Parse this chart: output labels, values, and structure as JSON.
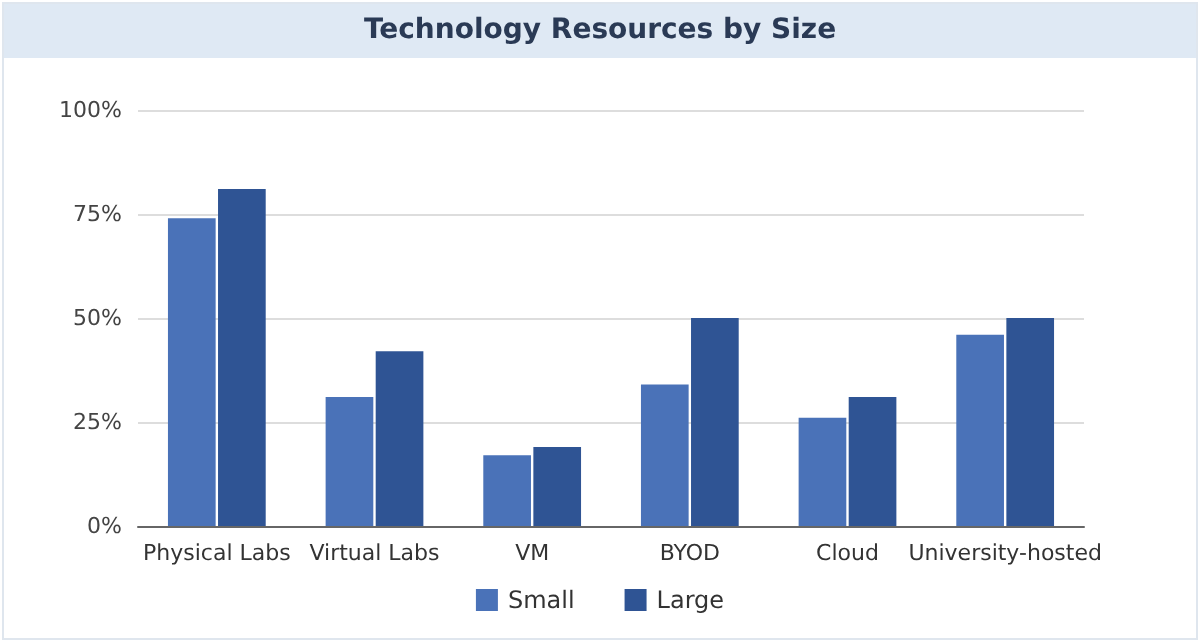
{
  "chart_data": {
    "type": "bar",
    "title": "Technology Resources by Size",
    "categories": [
      "Physical Labs",
      "Virtual Labs",
      "VM",
      "BYOD",
      "Cloud",
      "University-hosted"
    ],
    "series": [
      {
        "name": "Small",
        "color": "#4a72b8",
        "values": [
          74,
          31,
          17,
          34,
          26,
          46
        ]
      },
      {
        "name": "Large",
        "color": "#2f5494",
        "values": [
          81,
          42,
          19,
          50,
          31,
          50
        ]
      }
    ],
    "ylim": [
      0,
      100
    ],
    "yticks": [
      {
        "value": 0,
        "label": "0%"
      },
      {
        "value": 25,
        "label": "25%"
      },
      {
        "value": 50,
        "label": "50%"
      },
      {
        "value": 75,
        "label": "75%"
      },
      {
        "value": 100,
        "label": "100%"
      }
    ],
    "grid": "y",
    "legend": "bottom"
  }
}
